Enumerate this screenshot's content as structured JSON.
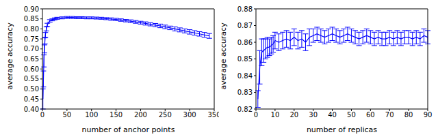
{
  "chart_data": [
    {
      "type": "line",
      "x_label": "number of anchor points",
      "y_label": "average accuracy",
      "color": "#0000ff",
      "grid": false,
      "x": [
        1,
        2,
        3,
        4,
        5,
        6,
        8,
        10,
        15,
        20,
        25,
        30,
        40,
        50,
        60,
        70,
        80,
        90,
        100,
        110,
        120,
        130,
        140,
        150,
        160,
        170,
        180,
        190,
        200,
        210,
        220,
        230,
        240,
        250,
        260,
        270,
        280,
        290,
        300,
        310,
        320,
        330,
        340
      ],
      "values": [
        0.45,
        0.55,
        0.64,
        0.7,
        0.74,
        0.77,
        0.8,
        0.82,
        0.84,
        0.845,
        0.85,
        0.853,
        0.855,
        0.857,
        0.857,
        0.856,
        0.856,
        0.855,
        0.855,
        0.854,
        0.853,
        0.851,
        0.849,
        0.847,
        0.844,
        0.841,
        0.838,
        0.835,
        0.831,
        0.827,
        0.823,
        0.819,
        0.815,
        0.81,
        0.805,
        0.8,
        0.795,
        0.79,
        0.785,
        0.78,
        0.775,
        0.77,
        0.765
      ],
      "errors": [
        0.05,
        0.04,
        0.03,
        0.02,
        0.015,
        0.012,
        0.01,
        0.008,
        0.006,
        0.005,
        0.005,
        0.005,
        0.005,
        0.005,
        0.005,
        0.005,
        0.005,
        0.005,
        0.005,
        0.005,
        0.005,
        0.005,
        0.006,
        0.006,
        0.006,
        0.006,
        0.007,
        0.007,
        0.007,
        0.008,
        0.008,
        0.008,
        0.009,
        0.009,
        0.009,
        0.01,
        0.01,
        0.01,
        0.011,
        0.011,
        0.011,
        0.012,
        0.012
      ],
      "xlim": [
        0,
        350
      ],
      "xticks": [
        0,
        50,
        100,
        150,
        200,
        250,
        300,
        350
      ],
      "ylim": [
        0.4,
        0.9
      ],
      "yticks": [
        {
          "value": 0.4,
          "label": "0.40"
        },
        {
          "value": 0.45,
          "label": "0.45"
        },
        {
          "value": 0.5,
          "label": "0.50"
        },
        {
          "value": 0.55,
          "label": "0.55"
        },
        {
          "value": 0.6,
          "label": "0.60"
        },
        {
          "value": 0.65,
          "label": "0.65"
        },
        {
          "value": 0.7,
          "label": "0.70"
        },
        {
          "value": 0.75,
          "label": "0.75"
        },
        {
          "value": 0.8,
          "label": "0.80"
        },
        {
          "value": 0.85,
          "label": "0.85"
        },
        {
          "value": 0.9,
          "label": "0.90"
        }
      ]
    },
    {
      "type": "line",
      "x_label": "number of replicas",
      "y_label": "average accuracy",
      "color": "#0000ff",
      "grid": false,
      "x": [
        1,
        2,
        3,
        4,
        5,
        6,
        7,
        8,
        9,
        10,
        12,
        14,
        16,
        18,
        20,
        22,
        24,
        26,
        28,
        30,
        32,
        34,
        36,
        38,
        40,
        42,
        44,
        46,
        48,
        50,
        52,
        54,
        56,
        58,
        60,
        62,
        64,
        66,
        68,
        70,
        72,
        74,
        76,
        78,
        80,
        82,
        84,
        86,
        88,
        90
      ],
      "values": [
        0.826,
        0.845,
        0.854,
        0.855,
        0.856,
        0.857,
        0.857,
        0.858,
        0.859,
        0.861,
        0.86,
        0.861,
        0.862,
        0.861,
        0.863,
        0.861,
        0.862,
        0.86,
        0.863,
        0.864,
        0.865,
        0.864,
        0.863,
        0.864,
        0.865,
        0.864,
        0.863,
        0.864,
        0.865,
        0.864,
        0.863,
        0.862,
        0.863,
        0.864,
        0.863,
        0.862,
        0.863,
        0.862,
        0.862,
        0.863,
        0.862,
        0.863,
        0.862,
        0.863,
        0.863,
        0.862,
        0.863,
        0.862,
        0.864,
        0.863
      ],
      "errors": [
        0.005,
        0.01,
        0.008,
        0.007,
        0.006,
        0.006,
        0.005,
        0.005,
        0.005,
        0.005,
        0.005,
        0.005,
        0.005,
        0.005,
        0.005,
        0.005,
        0.005,
        0.005,
        0.005,
        0.004,
        0.004,
        0.004,
        0.004,
        0.004,
        0.004,
        0.004,
        0.004,
        0.004,
        0.004,
        0.004,
        0.004,
        0.004,
        0.004,
        0.004,
        0.004,
        0.004,
        0.004,
        0.004,
        0.004,
        0.004,
        0.004,
        0.004,
        0.004,
        0.004,
        0.004,
        0.004,
        0.004,
        0.004,
        0.004,
        0.004
      ],
      "xlim": [
        0,
        90
      ],
      "xticks": [
        0,
        10,
        20,
        30,
        40,
        50,
        60,
        70,
        80,
        90
      ],
      "ylim": [
        0.82,
        0.88
      ],
      "yticks": [
        0.82,
        0.83,
        0.84,
        0.85,
        0.86,
        0.87,
        0.88
      ]
    }
  ]
}
